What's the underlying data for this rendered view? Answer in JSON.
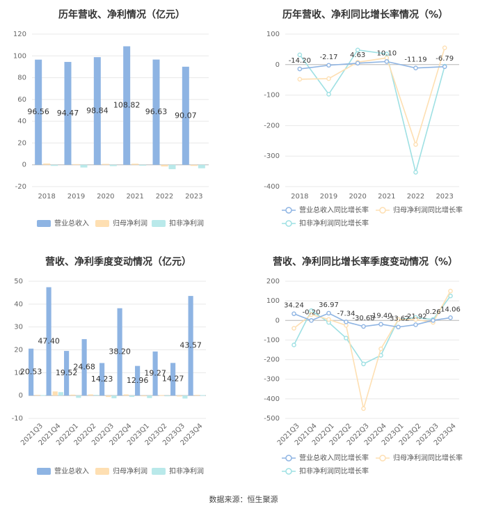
{
  "footer": "数据来源：恒生聚源",
  "colors": {
    "revenue": "#8eb4e3",
    "net_profit": "#fedfb2",
    "deducted_profit": "#b9e9ea",
    "revenue_growth": "#8eb4e3",
    "net_growth": "#fedfb2",
    "deducted_growth": "#9ee0e3",
    "grid": "#e8e8e8",
    "axis_text": "#666666"
  },
  "chart_data": [
    {
      "id": "annual_bar",
      "type": "bar",
      "title": "历年营收、净利情况（亿元）",
      "categories": [
        "2018",
        "2019",
        "2020",
        "2021",
        "2022",
        "2023"
      ],
      "ylim": [
        -20,
        120
      ],
      "yticks": [
        -20,
        0,
        20,
        40,
        60,
        80,
        100,
        120
      ],
      "grid": true,
      "legend_position": "bottom",
      "series": [
        {
          "name": "营业总收入",
          "color_key": "revenue",
          "values": [
            96.56,
            94.47,
            98.84,
            108.82,
            96.63,
            90.07
          ],
          "labels": [
            "96.56",
            "94.47",
            "98.84",
            "108.82",
            "96.63",
            "90.07"
          ]
        },
        {
          "name": "归母净利润",
          "color_key": "net_profit",
          "values": [
            1.2,
            0.6,
            0.8,
            1.0,
            -1.5,
            -1.0
          ]
        },
        {
          "name": "扣非净利润",
          "color_key": "deducted_profit",
          "values": [
            -1.0,
            -2.5,
            -1.2,
            -0.8,
            -4.0,
            -3.2
          ]
        }
      ]
    },
    {
      "id": "annual_growth",
      "type": "line",
      "title": "历年营收、净利同比增长率情况（%）",
      "categories": [
        "2018",
        "2019",
        "2020",
        "2021",
        "2022",
        "2023"
      ],
      "ylim": [
        -400,
        100
      ],
      "yticks": [
        -400,
        -300,
        -200,
        -100,
        0,
        100
      ],
      "grid": true,
      "legend_position": "bottom",
      "series": [
        {
          "name": "营业总收入同比增长率",
          "color_key": "revenue_growth",
          "values": [
            -14.2,
            -2.17,
            4.63,
            10.1,
            -11.19,
            -6.79
          ],
          "labels": [
            "-14.20",
            "-2.17",
            "4.63",
            "10.10",
            "-11.19",
            "-6.79"
          ]
        },
        {
          "name": "归母净利润同比增长率",
          "color_key": "net_growth",
          "values": [
            -48,
            -46,
            8,
            22,
            -262,
            55
          ]
        },
        {
          "name": "扣非净利润同比增长率",
          "color_key": "deducted_growth",
          "values": [
            32,
            -97,
            48,
            35,
            -353,
            -5
          ]
        }
      ]
    },
    {
      "id": "quarterly_bar",
      "type": "bar",
      "title": "营收、净利季度变动情况（亿元）",
      "categories": [
        "2021Q3",
        "2021Q4",
        "2022Q1",
        "2022Q2",
        "2022Q3",
        "2022Q4",
        "2023Q1",
        "2023Q2",
        "2023Q3",
        "2023Q4"
      ],
      "ylim": [
        -10,
        50
      ],
      "yticks": [
        -10,
        0,
        10,
        20,
        30,
        40,
        50
      ],
      "grid": true,
      "legend_position": "bottom",
      "series": [
        {
          "name": "营业总收入",
          "color_key": "revenue",
          "values": [
            20.53,
            47.4,
            19.52,
            24.68,
            14.23,
            38.2,
            12.96,
            19.27,
            14.27,
            43.57
          ],
          "labels": [
            "20.53",
            "47.40",
            "19.52",
            "24.68",
            "14.23",
            "38.20",
            "12.96",
            "19.27",
            "14.27",
            "43.57"
          ]
        },
        {
          "name": "归母净利润",
          "color_key": "net_profit",
          "values": [
            0.3,
            1.8,
            0.4,
            0.5,
            -0.6,
            0.5,
            -0.3,
            0.2,
            -0.4,
            0.3
          ]
        },
        {
          "name": "扣非净利润",
          "color_key": "deducted_profit",
          "values": [
            0.2,
            1.5,
            -1.0,
            0.3,
            -1.2,
            -0.6,
            -1.1,
            -0.2,
            -1.3,
            0.2
          ]
        }
      ]
    },
    {
      "id": "quarterly_growth",
      "type": "line",
      "title": "营收、净利同比增长率季度变动情况（%）",
      "categories": [
        "2021Q3",
        "2021Q4",
        "2022Q1",
        "2022Q2",
        "2022Q3",
        "2022Q4",
        "2023Q1",
        "2023Q2",
        "2023Q3",
        "2023Q4"
      ],
      "ylim": [
        -500,
        200
      ],
      "yticks": [
        -500,
        -400,
        -300,
        -200,
        -100,
        0,
        100,
        200
      ],
      "grid": true,
      "legend_position": "bottom",
      "series": [
        {
          "name": "营业总收入同比增长率",
          "color_key": "revenue_growth",
          "values": [
            34.24,
            -0.2,
            36.97,
            -7.34,
            -30.68,
            -19.4,
            -33.62,
            -21.92,
            0.26,
            14.06
          ],
          "labels": [
            "34.24",
            "-0.20",
            "36.97",
            "-7.34",
            "-30.68",
            "-19.40",
            "-33.62",
            "-21.92",
            "0.26",
            "14.06"
          ]
        },
        {
          "name": "归母净利润同比增长率",
          "color_key": "net_growth",
          "values": [
            -40,
            30,
            5,
            -25,
            -450,
            -145,
            5,
            5,
            -10,
            150
          ]
        },
        {
          "name": "扣非净利润同比增长率",
          "color_key": "deducted_growth",
          "values": [
            -125,
            50,
            -10,
            -90,
            -222,
            -178,
            5,
            15,
            5,
            125
          ]
        }
      ]
    }
  ]
}
